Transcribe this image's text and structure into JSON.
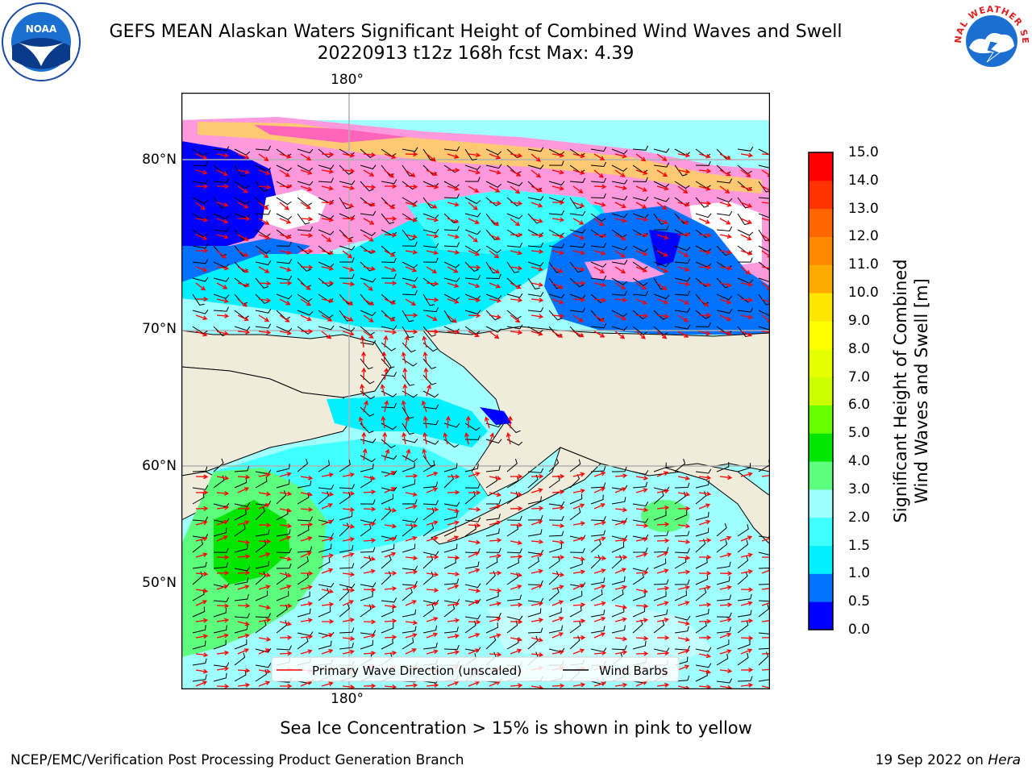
{
  "header": {
    "title_line1": "GEFS MEAN Alaskan Waters Significant Height of Combined Wind Waves and Swell",
    "title_line2": "20220913 t12z 168h fcst   Max: 4.39"
  },
  "logos": {
    "left": {
      "icon": "noaa-logo",
      "text": "NOAA"
    },
    "right": {
      "icon": "national-weather-service-logo",
      "text": "NATIONAL WEATHER SERVICE"
    }
  },
  "map": {
    "lon_labels": [
      "180°",
      "180°"
    ],
    "lat_labels": [
      "80°N",
      "70°N",
      "60°N",
      "50°N"
    ],
    "legend": {
      "wave_label": "Primary Wave Direction (unscaled)",
      "barb_label": "Wind Barbs",
      "wave_color": "#ff0000",
      "barb_color": "#000000"
    },
    "colors": {
      "land": "#efecdc",
      "gridline": "#b0b0b0"
    }
  },
  "colorbar": {
    "title_line1": "Significant Height of Combined",
    "title_line2": "Wind Waves and Swell [m]",
    "ticks": [
      "15.0",
      "14.0",
      "13.0",
      "12.0",
      "11.0",
      "10.0",
      "9.0",
      "8.0",
      "7.0",
      "6.0",
      "5.0",
      "4.0",
      "3.0",
      "2.0",
      "1.5",
      "1.0",
      "0.5",
      "0.0"
    ],
    "colors_bottom_to_top": [
      "#0000ff",
      "#0072ff",
      "#00f0ff",
      "#40ffff",
      "#a0ffff",
      "#5dfe7e",
      "#00e600",
      "#66ff00",
      "#ccff00",
      "#e6ff00",
      "#ffff00",
      "#ffe600",
      "#ffaa00",
      "#ff8800",
      "#ff6600",
      "#ff3300",
      "#ff0000"
    ]
  },
  "footer": {
    "note": "Sea Ice Concentration > 15% is shown in pink to yellow",
    "credit_left": "NCEP/EMC/Verification Post Processing Product Generation Branch",
    "credit_right_date": "19 Sep 2022 on ",
    "credit_right_host": "Hera"
  }
}
